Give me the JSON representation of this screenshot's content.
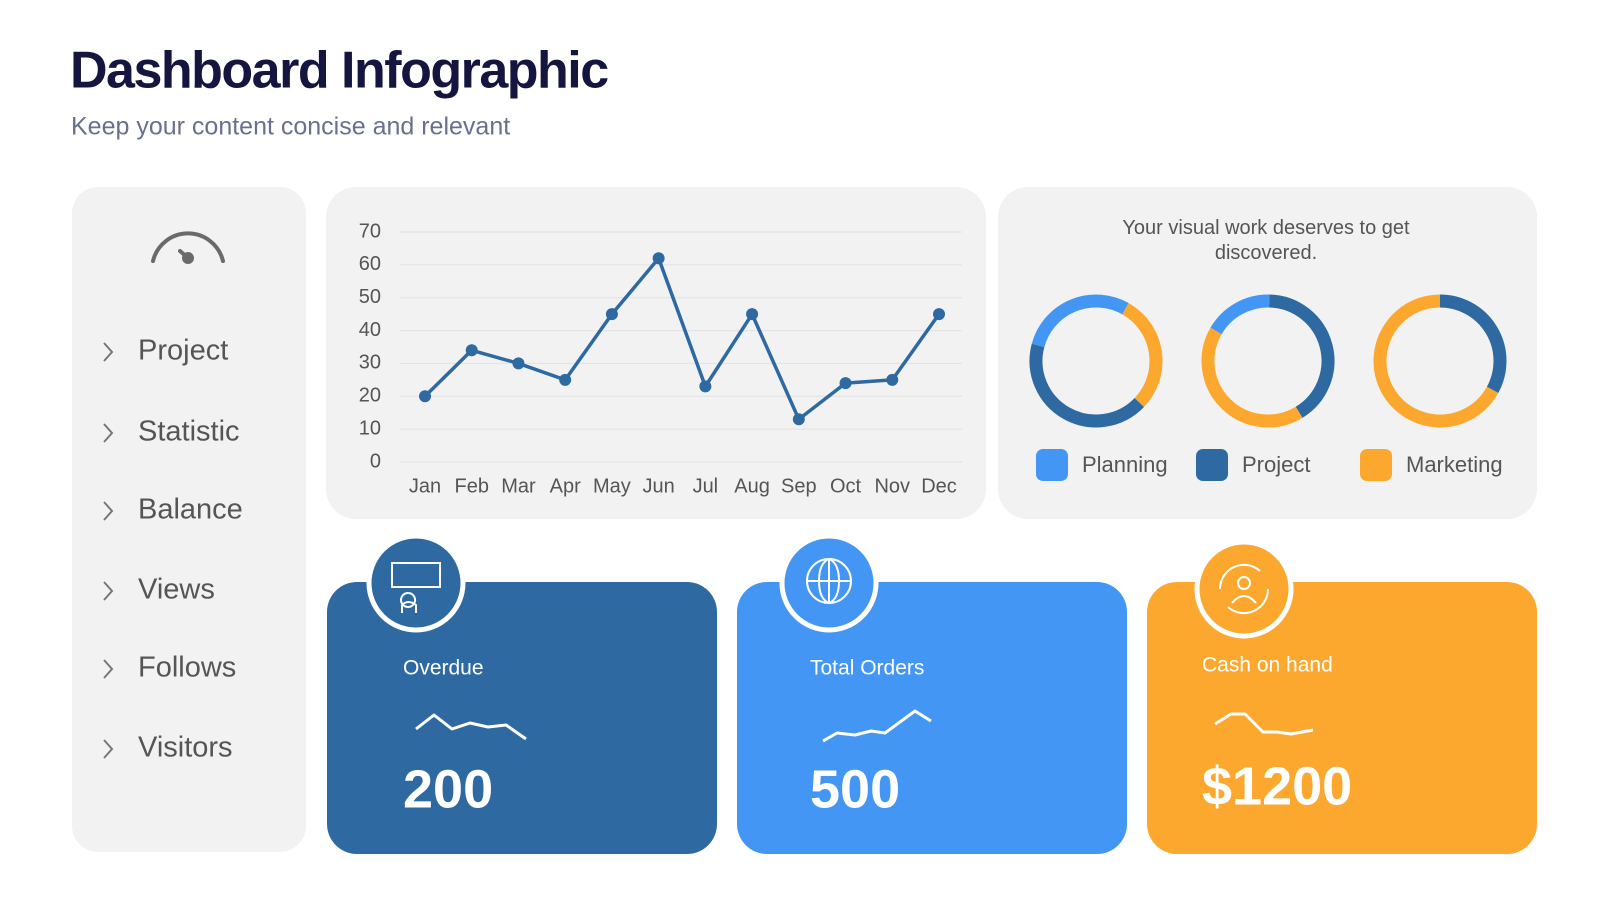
{
  "header": {
    "title": "Dashboard Infographic",
    "subtitle": "Keep your content concise and relevant"
  },
  "nav": [
    "Project",
    "Statistic",
    "Balance",
    "Views",
    "Follows",
    "Visitors"
  ],
  "chart_data": [
    {
      "type": "line",
      "categories": [
        "Jan",
        "Feb",
        "Mar",
        "Apr",
        "May",
        "Jun",
        "Jul",
        "Aug",
        "Sep",
        "Oct",
        "Nov",
        "Dec"
      ],
      "values": [
        20,
        34,
        30,
        25,
        45,
        62,
        23,
        45,
        13,
        24,
        25,
        45
      ],
      "color": "#2e6aa1",
      "ylim": [
        0,
        70
      ],
      "yticks": [
        0,
        10,
        20,
        30,
        40,
        50,
        60,
        70
      ],
      "grid": true
    },
    {
      "type": "donut",
      "title": "Your visual work deserves to get discovered.",
      "categories": [
        "Planning",
        "Project",
        "Marketing"
      ],
      "colors": [
        "#4396f3",
        "#2e6aa1",
        "#fca82f"
      ],
      "series": [
        {
          "values": [
            29,
            42,
            29
          ]
        },
        {
          "values": [
            17,
            41,
            42
          ]
        },
        {
          "values": [
            0,
            33,
            67
          ]
        }
      ]
    }
  ],
  "cards": [
    {
      "label": "Overdue",
      "value": "200",
      "color": "#2e6aa1"
    },
    {
      "label": "Total Orders",
      "value": "500",
      "color": "#4396f3"
    },
    {
      "label": "Cash on hand",
      "value": "$1200",
      "color": "#fca82f"
    }
  ]
}
